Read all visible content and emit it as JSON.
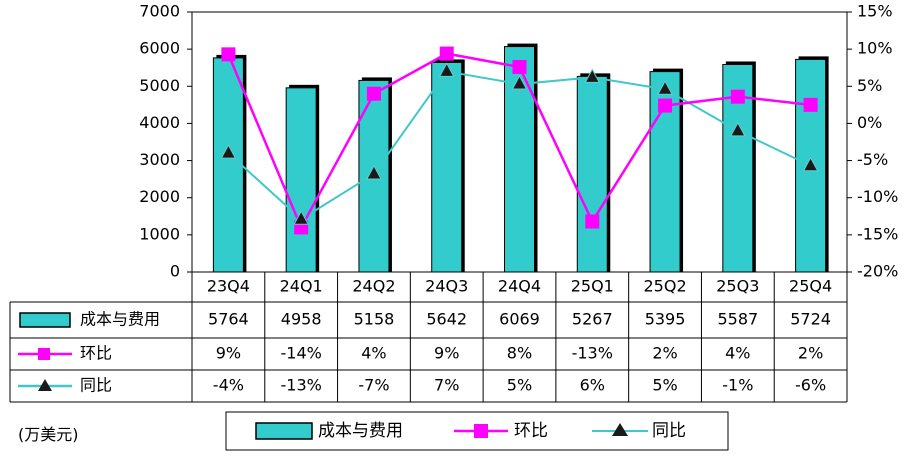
{
  "chart_data": {
    "type": "bar",
    "categories": [
      "23Q4",
      "24Q1",
      "24Q2",
      "24Q3",
      "24Q4",
      "25Q1",
      "25Q2",
      "25Q3",
      "25Q4"
    ],
    "series": [
      {
        "name": "成本与费用",
        "type": "bar",
        "axis": "left",
        "color": "#33CCCC",
        "values": [
          5764,
          4958,
          5158,
          5642,
          6069,
          5267,
          5395,
          5587,
          5724
        ],
        "labels": [
          "5764",
          "4958",
          "5158",
          "5642",
          "6069",
          "5267",
          "5395",
          "5587",
          "5724"
        ]
      },
      {
        "name": "环比",
        "type": "line",
        "axis": "right",
        "color": "#FF00FF",
        "marker": "square",
        "values": [
          9.3,
          -14.0,
          4.0,
          9.4,
          7.6,
          -13.2,
          2.4,
          3.6,
          2.5
        ],
        "labels": [
          "9%",
          "-14%",
          "4%",
          "9%",
          "8%",
          "-13%",
          "2%",
          "4%",
          "2%"
        ]
      },
      {
        "name": "同比",
        "type": "line",
        "axis": "right",
        "color": "#40C8C8",
        "marker": "triangle",
        "values": [
          -4.0,
          -12.9,
          -6.8,
          7.0,
          5.3,
          6.2,
          4.6,
          -1.0,
          -5.7
        ],
        "labels": [
          "-4%",
          "-13%",
          "-7%",
          "7%",
          "5%",
          "6%",
          "5%",
          "-1%",
          "-6%"
        ]
      }
    ],
    "ylim_left": [
      0,
      7000
    ],
    "yticks_left": [
      "0",
      "1000",
      "2000",
      "3000",
      "4000",
      "5000",
      "6000",
      "7000"
    ],
    "ylim_right": [
      -20,
      15
    ],
    "yticks_right": [
      "-20%",
      "-15%",
      "-10%",
      "-5%",
      "0%",
      "5%",
      "10%",
      "15%"
    ],
    "grid": false,
    "legend": "bottom",
    "unit_note": "(万美元)"
  }
}
